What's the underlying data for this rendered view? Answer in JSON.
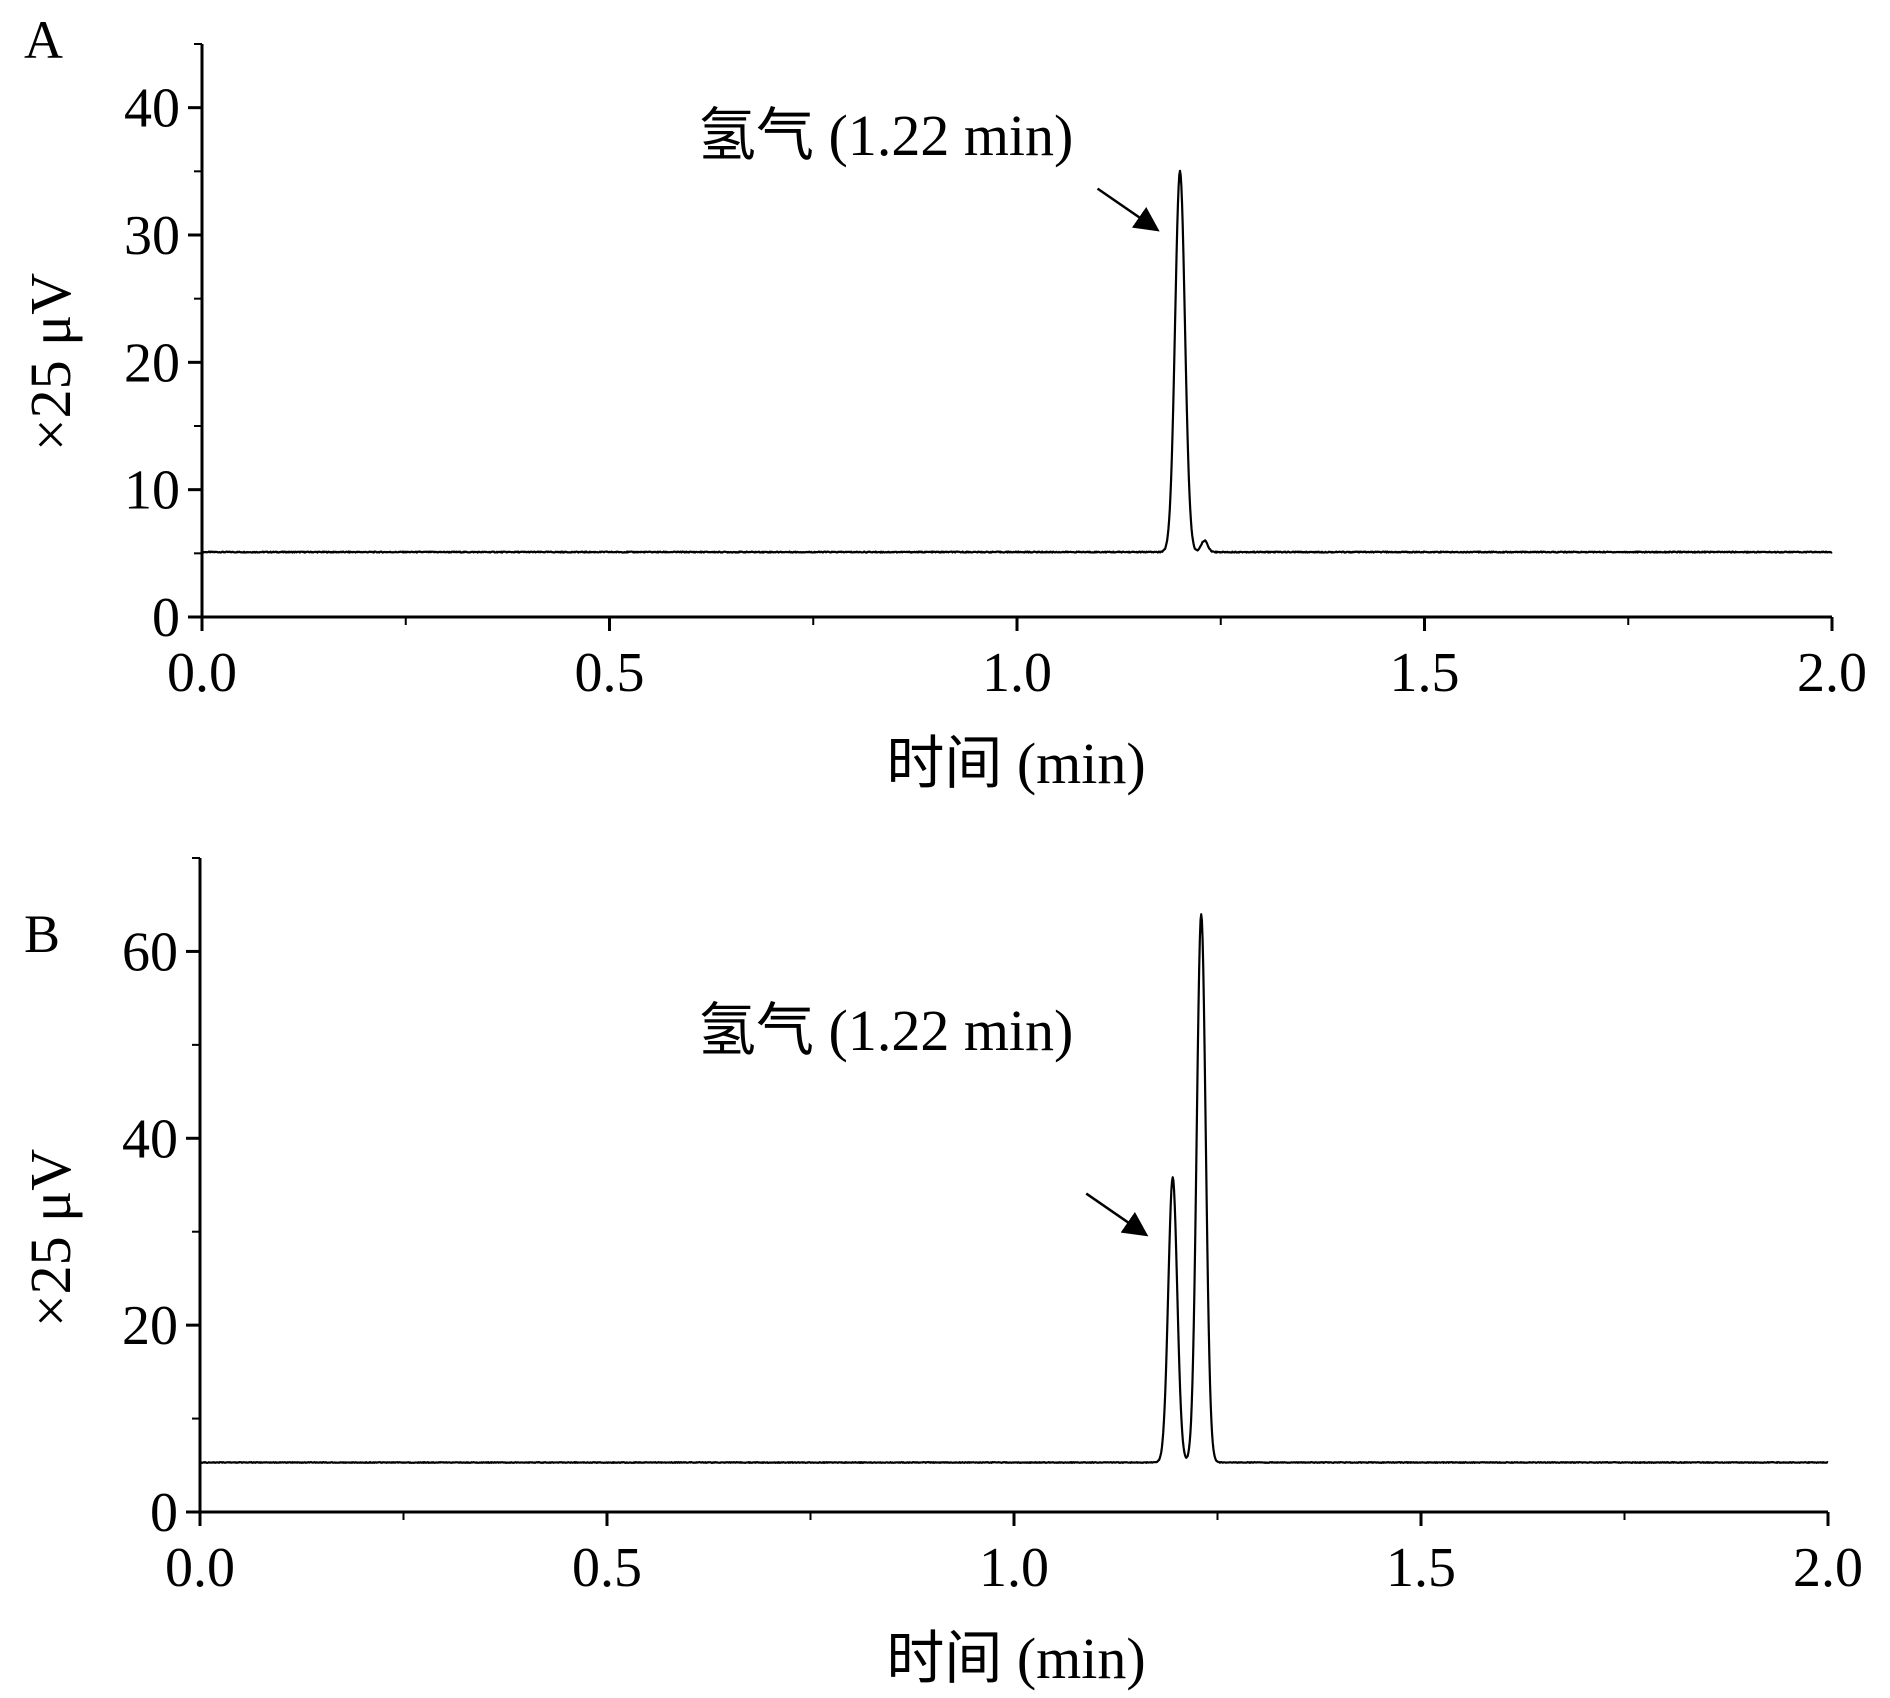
{
  "chart_data": [
    {
      "panel_label": "A",
      "type": "line",
      "title": "",
      "xlabel": "时间 (min)",
      "ylabel": "×25 μV",
      "xlim": [
        0,
        2.0
      ],
      "ylim": [
        0,
        45
      ],
      "x_ticks": [
        "0.0",
        "0.5",
        "1.0",
        "1.5",
        "2.0"
      ],
      "y_ticks": [
        "0",
        "10",
        "20",
        "30",
        "40"
      ],
      "baseline": 5.1,
      "series": [
        {
          "peaks": [
            {
              "x": 1.2,
              "height": 29.9,
              "width": 0.006
            },
            {
              "x": 1.23,
              "height": 0.9,
              "width": 0.004
            }
          ]
        }
      ],
      "annotation": {
        "text": "氢气 (1.22 min)",
        "arrow_target": {
          "x": 1.17,
          "y": 30.5
        }
      },
      "grid": false,
      "legend": "none"
    },
    {
      "panel_label": "B",
      "type": "line",
      "title": "",
      "xlabel": "时间 (min)",
      "ylabel": "×25 μV",
      "xlim": [
        0,
        2.0
      ],
      "ylim": [
        0,
        70
      ],
      "x_ticks": [
        "0.0",
        "0.5",
        "1.0",
        "1.5",
        "2.0"
      ],
      "y_ticks": [
        "0",
        "20",
        "40",
        "60"
      ],
      "baseline": 5.3,
      "series": [
        {
          "peaks": [
            {
              "x": 1.195,
              "height": 30.5,
              "width": 0.0055
            },
            {
              "x": 1.23,
              "height": 58.7,
              "width": 0.0055
            }
          ]
        }
      ],
      "annotation": {
        "text": "氢气 (1.22 min)",
        "arrow_target": {
          "x": 1.16,
          "y": 29.8
        }
      },
      "grid": false,
      "legend": "none"
    }
  ]
}
